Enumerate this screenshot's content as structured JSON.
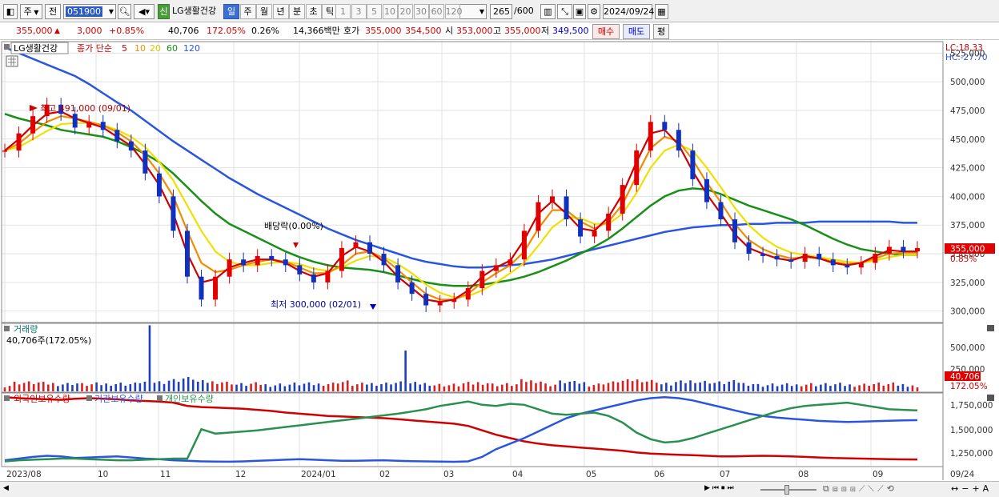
{
  "toolbar": {
    "period_label": "주",
    "prev_label": "전",
    "code": "051900",
    "badge": "신",
    "stock_name": "LG생활건강",
    "intervals": [
      "일",
      "주",
      "월",
      "년",
      "분",
      "초",
      "틱"
    ],
    "selected_interval": "일",
    "numbers": [
      "1",
      "3",
      "5",
      "10",
      "20",
      "30",
      "60",
      "120"
    ],
    "count": "265",
    "count_total": "/600",
    "date": "2024/09/24"
  },
  "quote": {
    "price": "355,000",
    "arrow": "▲",
    "change": "3,000",
    "change_pct": "+0.85%",
    "volume": "40,706",
    "volume_ratio": "172.05%",
    "turnover": "0.26%",
    "amount": "14,366백만",
    "ask_label": "호가",
    "ask1": "355,000",
    "ask2": "354,500",
    "open_label": "시",
    "open": "353,000",
    "high_label": "고",
    "high": "355,000",
    "low_label": "저",
    "low": "349,500",
    "buy": "매수",
    "sell": "매도",
    "eval": "평"
  },
  "price_pane": {
    "title": "LG생활건강",
    "legend_prefix": "종가 단순",
    "ma_labels": [
      "5",
      "10",
      "20",
      "60",
      "120"
    ],
    "ma_colors": [
      "#d00000",
      "#f08c00",
      "#f0e000",
      "#189018",
      "#2a55e0"
    ],
    "lc": "LC:18.33",
    "hc": "HC:-27.70",
    "yaxis": [
      "525,000",
      "500,000",
      "475,000",
      "450,000",
      "425,000",
      "400,000",
      "375,000",
      "350,000",
      "325,000",
      "300,000"
    ],
    "current_price_tag": "355,000",
    "current_pct_tag": "0.85%",
    "high_note": "최고 491,000 (09/01)",
    "low_note": "최저 300,000 (02/01)",
    "dividend_note": "배당락(0.00%)"
  },
  "volume_pane": {
    "title": "거래량",
    "value": "40,706주(172.05%)",
    "yaxis": [
      "500,000",
      "250,000"
    ],
    "tag_value": "40,706",
    "tag_pct": "172.05%"
  },
  "holdings_pane": {
    "series": [
      {
        "name": "외국인보유수량",
        "color": "#d00000"
      },
      {
        "name": "기관보유수량",
        "color": "#2a55e0"
      },
      {
        "name": "개인보유수량",
        "color": "#2a9050"
      }
    ],
    "yaxis": [
      "1,750,000",
      "1,500,000",
      "1,250,000"
    ]
  },
  "xaxis": {
    "labels": [
      "2023/08",
      "10",
      "11",
      "12",
      "2024/01",
      "02",
      "03",
      "04",
      "05",
      "06",
      "07",
      "08",
      "09"
    ],
    "current": "09/24"
  },
  "chart_data": {
    "type": "line",
    "title": "LG생활건강",
    "x_start": "2023/08",
    "x_end": "09/24",
    "price_ylim": [
      290000,
      535000
    ],
    "price_annotations": {
      "high": 491000,
      "high_date": "09/01",
      "low": 300000,
      "low_date": "02/01",
      "last_close": 355000
    },
    "price_series": [
      {
        "name": "종가",
        "values": [
          440000,
          455000,
          470000,
          480000,
          472000,
          460000,
          465000,
          458000,
          448000,
          440000,
          420000,
          400000,
          370000,
          330000,
          310000,
          330000,
          345000,
          340000,
          348000,
          345000,
          340000,
          332000,
          325000,
          335000,
          355000,
          360000,
          350000,
          340000,
          325000,
          315000,
          305000,
          308000,
          310000,
          320000,
          335000,
          340000,
          345000,
          370000,
          395000,
          400000,
          380000,
          365000,
          370000,
          385000,
          410000,
          440000,
          465000,
          458000,
          440000,
          415000,
          395000,
          380000,
          360000,
          350000,
          348000,
          345000,
          343000,
          350000,
          345000,
          340000,
          338000,
          342000,
          350000,
          356000,
          352000,
          355000
        ]
      },
      {
        "name": "5",
        "values": [
          440000,
          450000,
          462000,
          472000,
          474000,
          468000,
          464000,
          460000,
          452000,
          444000,
          428000,
          410000,
          385000,
          350000,
          325000,
          328000,
          338000,
          342000,
          345000,
          345000,
          342000,
          335000,
          330000,
          333000,
          348000,
          356000,
          352000,
          343000,
          330000,
          320000,
          310000,
          308000,
          310000,
          318000,
          330000,
          338000,
          344000,
          362000,
          385000,
          396000,
          385000,
          372000,
          370000,
          382000,
          402000,
          430000,
          455000,
          458000,
          445000,
          422000,
          402000,
          385000,
          367000,
          355000,
          350000,
          346000,
          344000,
          348000,
          346000,
          342000,
          340000,
          342000,
          348000,
          353000,
          352000,
          352000
        ]
      },
      {
        "name": "10",
        "values": [
          440000,
          446000,
          456000,
          465000,
          470000,
          468000,
          465000,
          462000,
          456000,
          448000,
          436000,
          420000,
          400000,
          370000,
          342000,
          334000,
          336000,
          340000,
          343000,
          345000,
          343000,
          338000,
          333000,
          333000,
          340000,
          350000,
          352000,
          346000,
          336000,
          325000,
          315000,
          310000,
          310000,
          315000,
          325000,
          333000,
          340000,
          352000,
          372000,
          388000,
          388000,
          378000,
          372000,
          378000,
          393000,
          418000,
          442000,
          452000,
          448000,
          432000,
          412000,
          395000,
          376000,
          362000,
          354000,
          349000,
          346000,
          347000,
          346000,
          343000,
          341000,
          342000,
          346000,
          350000,
          351000,
          351000
        ]
      },
      {
        "name": "20",
        "values": [
          440000,
          443000,
          450000,
          457000,
          463000,
          464000,
          464000,
          462000,
          458000,
          452000,
          443000,
          430000,
          414000,
          392000,
          370000,
          352000,
          343000,
          340000,
          340000,
          342000,
          343000,
          341000,
          337000,
          335000,
          338000,
          344000,
          348000,
          347000,
          341000,
          333000,
          323000,
          316000,
          312000,
          313000,
          318000,
          325000,
          333000,
          342000,
          357000,
          373000,
          382000,
          381000,
          376000,
          376000,
          385000,
          403000,
          425000,
          440000,
          445000,
          440000,
          425000,
          408000,
          390000,
          375000,
          364000,
          356000,
          351000,
          349000,
          347000,
          345000,
          343000,
          342000,
          344000,
          347000,
          349000,
          349000
        ]
      },
      {
        "name": "60",
        "values": [
          472000,
          468000,
          465000,
          462000,
          458000,
          456000,
          454000,
          452000,
          448000,
          443000,
          437000,
          430000,
          420000,
          408000,
          396000,
          385000,
          376000,
          370000,
          364000,
          358000,
          352000,
          347000,
          343000,
          340000,
          338000,
          337000,
          336000,
          334000,
          331000,
          328000,
          325000,
          323000,
          322000,
          322000,
          323000,
          325000,
          327000,
          330000,
          334000,
          339000,
          344000,
          350000,
          356000,
          363000,
          372000,
          382000,
          392000,
          400000,
          405000,
          407000,
          406000,
          402000,
          397000,
          392000,
          388000,
          384000,
          380000,
          375000,
          369000,
          363000,
          358000,
          354000,
          352000,
          350000,
          349000,
          349000
        ]
      },
      {
        "name": "120",
        "values": [
          530000,
          525000,
          520000,
          515000,
          510000,
          505000,
          498000,
          490000,
          482000,
          475000,
          466000,
          457000,
          448000,
          440000,
          432000,
          424000,
          416000,
          409000,
          402000,
          396000,
          390000,
          384000,
          378000,
          372000,
          367000,
          362000,
          358000,
          354000,
          350000,
          346000,
          343000,
          341000,
          339000,
          338000,
          338000,
          339000,
          340000,
          341000,
          343000,
          345000,
          348000,
          351000,
          354000,
          357000,
          360000,
          363000,
          366000,
          369000,
          371000,
          373000,
          374000,
          375000,
          375000,
          376000,
          376000,
          377000,
          377000,
          377000,
          378000,
          378000,
          378000,
          378000,
          378000,
          378000,
          377000,
          377000
        ]
      }
    ],
    "volume_ylim": [
      0,
      700000
    ],
    "volume_spike": {
      "value": 680000,
      "date": "10/31"
    },
    "volume_last": 40706,
    "holdings_ylim": [
      1150000,
      1800000
    ],
    "holdings_series": [
      {
        "name": "외국인보유수량",
        "values": [
          1770000,
          1760000,
          1755000,
          1750000,
          1745000,
          1755000,
          1760000,
          1755000,
          1750000,
          1740000,
          1735000,
          1730000,
          1720000,
          1690000,
          1680000,
          1675000,
          1670000,
          1665000,
          1655000,
          1645000,
          1630000,
          1620000,
          1610000,
          1600000,
          1595000,
          1590000,
          1585000,
          1580000,
          1570000,
          1560000,
          1550000,
          1540000,
          1530000,
          1510000,
          1470000,
          1430000,
          1400000,
          1370000,
          1350000,
          1335000,
          1325000,
          1315000,
          1305000,
          1295000,
          1285000,
          1270000,
          1260000,
          1255000,
          1250000,
          1245000,
          1240000,
          1235000,
          1235000,
          1238000,
          1240000,
          1238000,
          1235000,
          1230000,
          1225000,
          1220000,
          1218000,
          1215000,
          1212000,
          1210000,
          1208000,
          1207000
        ]
      },
      {
        "name": "기관보유수량",
        "values": [
          1200000,
          1215000,
          1230000,
          1240000,
          1235000,
          1220000,
          1225000,
          1230000,
          1235000,
          1225000,
          1215000,
          1210000,
          1200000,
          1195000,
          1190000,
          1188000,
          1187000,
          1190000,
          1195000,
          1200000,
          1205000,
          1210000,
          1205000,
          1200000,
          1195000,
          1195000,
          1198000,
          1200000,
          1195000,
          1192000,
          1190000,
          1188000,
          1186000,
          1190000,
          1230000,
          1300000,
          1350000,
          1400000,
          1460000,
          1520000,
          1580000,
          1620000,
          1650000,
          1680000,
          1710000,
          1740000,
          1760000,
          1770000,
          1760000,
          1740000,
          1710000,
          1680000,
          1650000,
          1620000,
          1600000,
          1585000,
          1575000,
          1565000,
          1555000,
          1550000,
          1545000,
          1548000,
          1552000,
          1556000,
          1560000,
          1562000
        ]
      },
      {
        "name": "개인보유수량",
        "values": [
          1190000,
          1200000,
          1205000,
          1210000,
          1215000,
          1215000,
          1210000,
          1205000,
          1200000,
          1200000,
          1205000,
          1210000,
          1215000,
          1215000,
          1480000,
          1440000,
          1450000,
          1460000,
          1470000,
          1485000,
          1500000,
          1515000,
          1530000,
          1545000,
          1560000,
          1575000,
          1590000,
          1605000,
          1620000,
          1640000,
          1660000,
          1690000,
          1710000,
          1730000,
          1700000,
          1690000,
          1710000,
          1700000,
          1660000,
          1620000,
          1610000,
          1620000,
          1630000,
          1600000,
          1540000,
          1450000,
          1390000,
          1360000,
          1370000,
          1400000,
          1440000,
          1480000,
          1520000,
          1560000,
          1600000,
          1640000,
          1670000,
          1690000,
          1700000,
          1710000,
          1720000,
          1700000,
          1680000,
          1660000,
          1655000,
          1650000
        ]
      }
    ]
  }
}
